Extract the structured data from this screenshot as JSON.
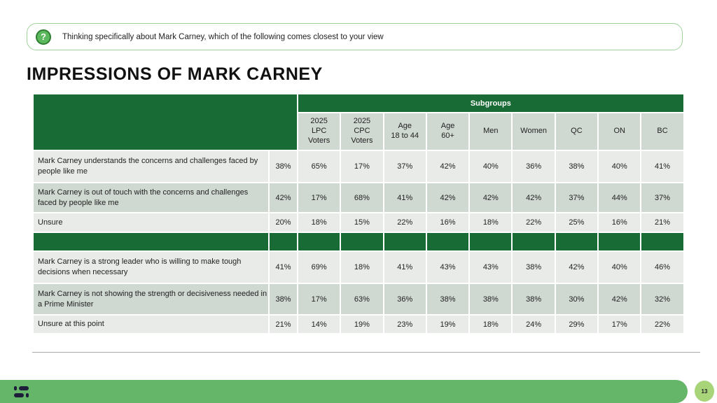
{
  "question": "Thinking specifically about Mark Carney, which of the following comes closest to your view",
  "title": "IMPRESSIONS OF MARK CARNEY",
  "subgroups_label": "Subgroups",
  "columns": [
    [
      "2025",
      "LPC",
      "Voters"
    ],
    [
      "2025",
      "CPC",
      "Voters"
    ],
    [
      "Age",
      "18 to 44"
    ],
    [
      "Age",
      "60+"
    ],
    [
      "Men"
    ],
    [
      "Women"
    ],
    [
      "QC"
    ],
    [
      "ON"
    ],
    [
      "BC"
    ]
  ],
  "section1": [
    {
      "label": "Mark Carney understands the concerns and challenges faced by people like me",
      "total": "38%",
      "values": [
        "65%",
        "17%",
        "37%",
        "42%",
        "40%",
        "36%",
        "38%",
        "40%",
        "41%"
      ]
    },
    {
      "label": "Mark Carney is out of touch with the concerns and challenges faced by people like me",
      "total": "42%",
      "values": [
        "17%",
        "68%",
        "41%",
        "42%",
        "42%",
        "42%",
        "37%",
        "44%",
        "37%"
      ]
    },
    {
      "label": "Unsure",
      "total": "20%",
      "values": [
        "18%",
        "15%",
        "22%",
        "16%",
        "18%",
        "22%",
        "25%",
        "16%",
        "21%"
      ]
    }
  ],
  "section2": [
    {
      "label": "Mark Carney is a strong leader who is willing to make tough decisions when necessary",
      "total": "41%",
      "values": [
        "69%",
        "18%",
        "41%",
        "43%",
        "43%",
        "38%",
        "42%",
        "40%",
        "46%"
      ]
    },
    {
      "label": "Mark Carney is not showing the strength or decisiveness needed in a Prime Minister",
      "total": "38%",
      "values": [
        "17%",
        "63%",
        "36%",
        "38%",
        "38%",
        "38%",
        "30%",
        "42%",
        "32%"
      ]
    },
    {
      "label": "Unsure at this point",
      "total": "21%",
      "values": [
        "14%",
        "19%",
        "23%",
        "19%",
        "18%",
        "24%",
        "29%",
        "17%",
        "22%"
      ]
    }
  ],
  "page_number": "13"
}
